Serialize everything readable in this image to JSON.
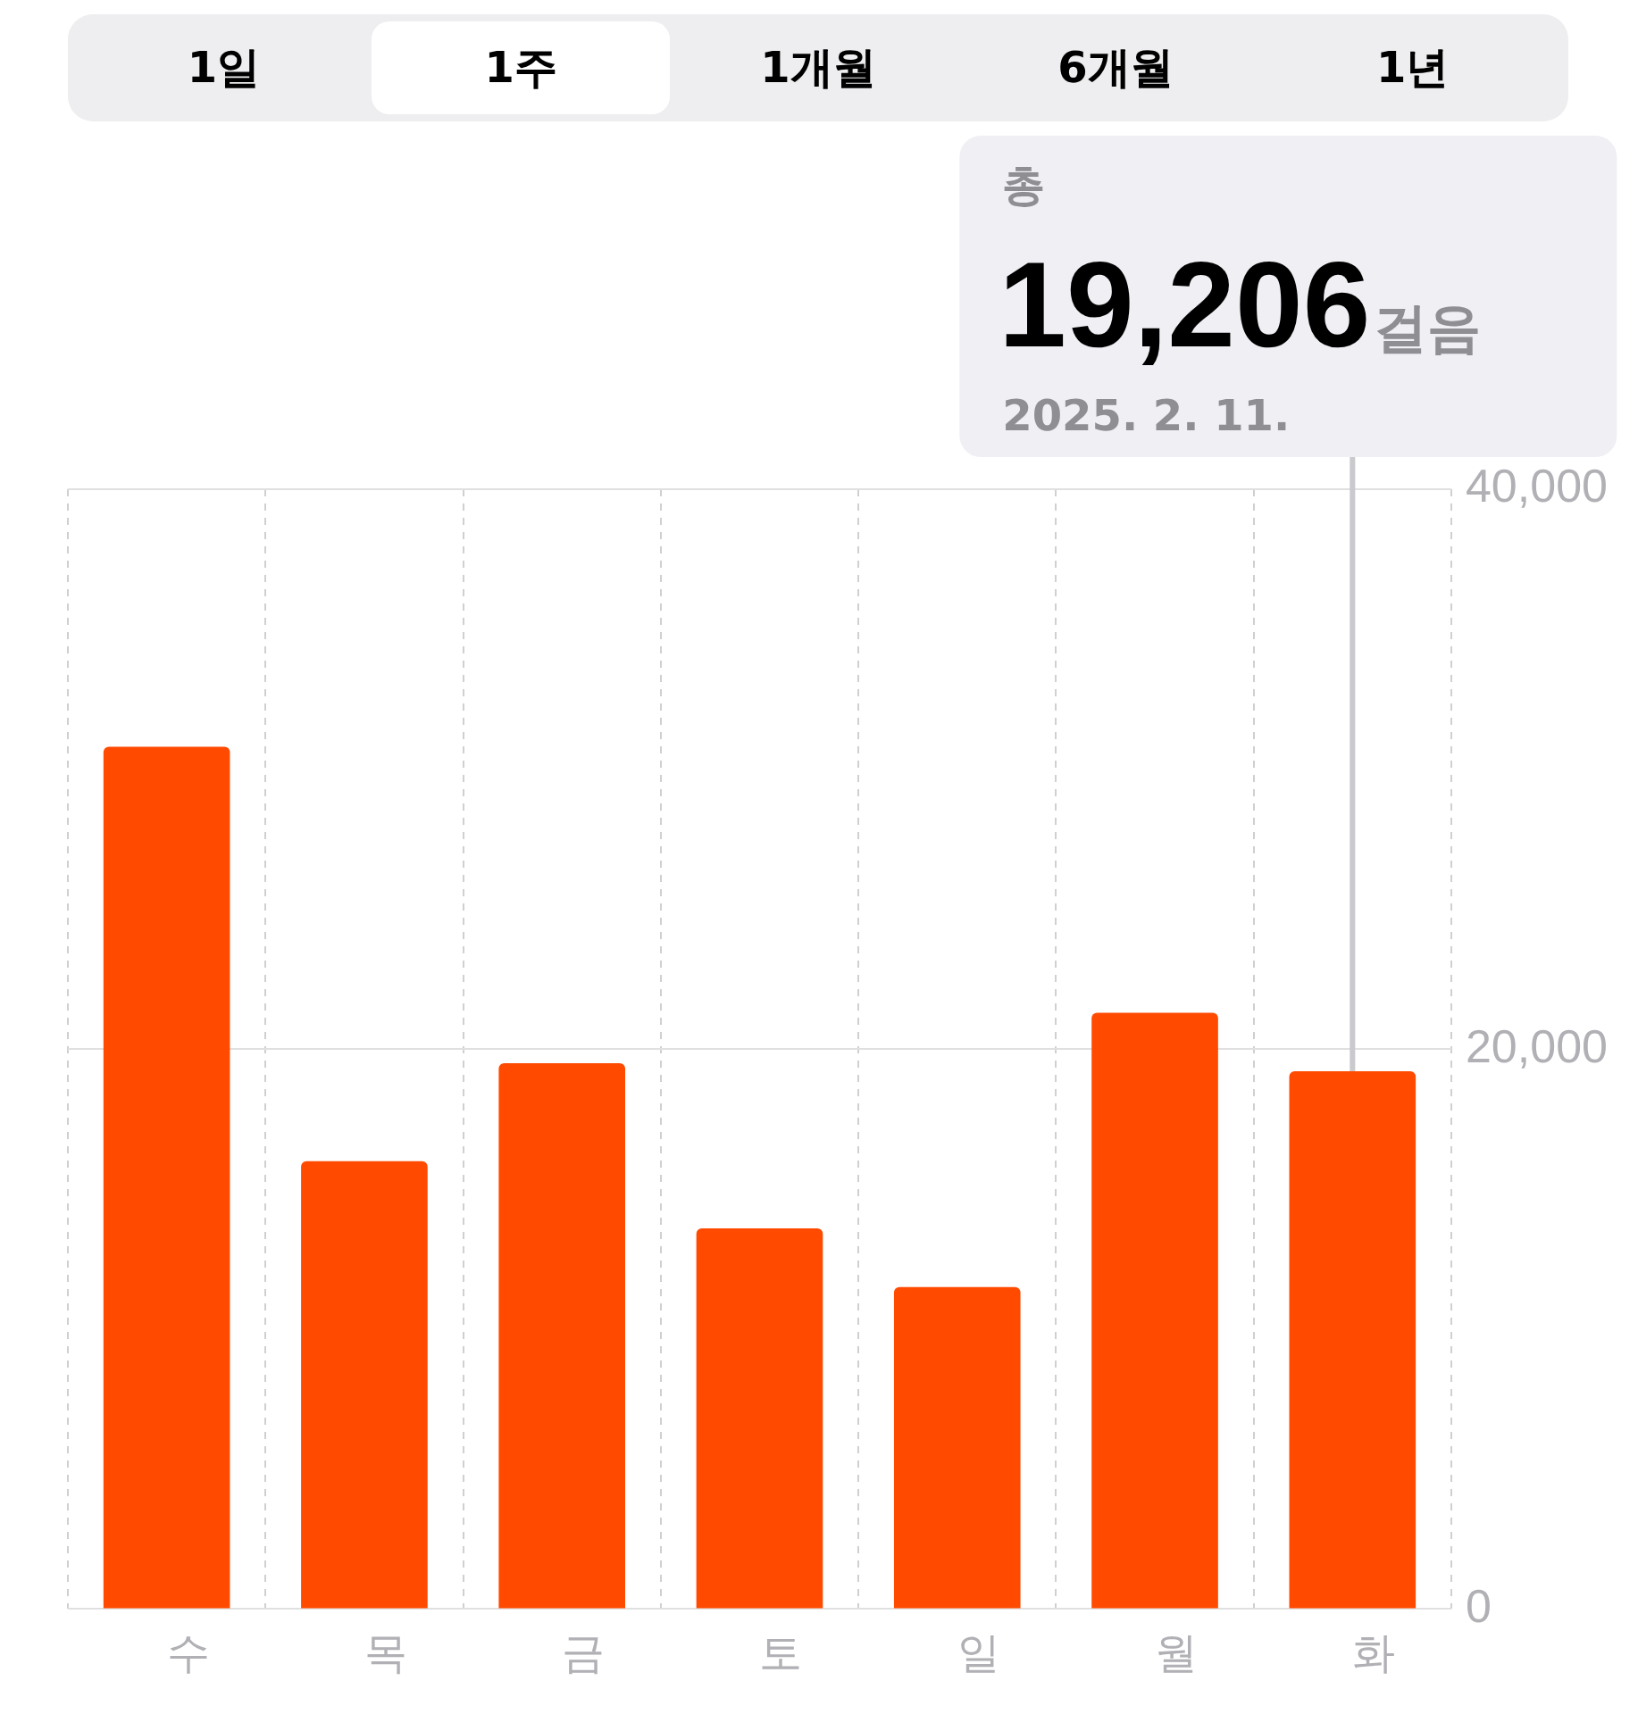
{
  "chart_data": {
    "type": "bar",
    "categories": [
      "수",
      "목",
      "금",
      "토",
      "일",
      "월",
      "화"
    ],
    "values": [
      30800,
      16000,
      19500,
      13600,
      11500,
      21300,
      19206
    ],
    "color": "#ff4a00",
    "ylim": [
      0,
      40000
    ],
    "yticks": [
      {
        "value": 0,
        "label": "0"
      },
      {
        "value": 20000,
        "label": "20,000"
      },
      {
        "value": 40000,
        "label": "40,000"
      }
    ],
    "grid": true,
    "legend": false,
    "annotations": [
      "1일",
      "1주",
      "1개월",
      "6개월",
      "1년",
      "총",
      "19,206걸음",
      "2025. 2. 11."
    ]
  }
}
